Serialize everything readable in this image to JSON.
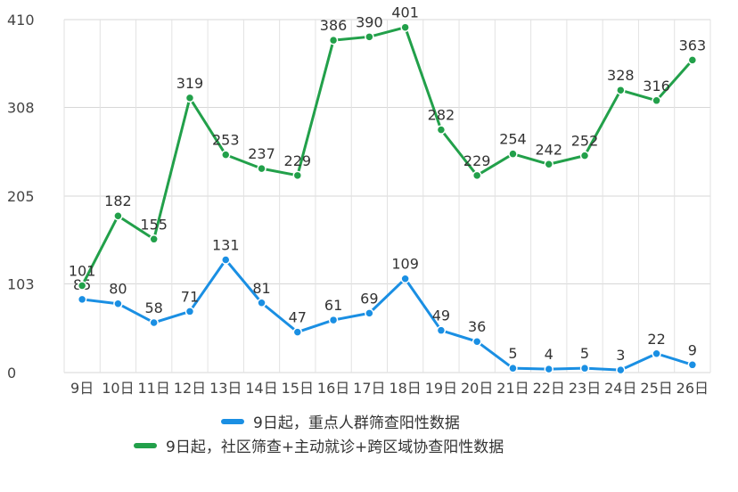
{
  "chart_data": {
    "type": "line",
    "categories": [
      "9日",
      "10日",
      "11日",
      "12日",
      "13日",
      "14日",
      "15日",
      "16日",
      "17日",
      "18日",
      "19日",
      "20日",
      "21日",
      "22日",
      "23日",
      "24日",
      "25日",
      "26日"
    ],
    "ylim": [
      0,
      410
    ],
    "yticks": [
      0,
      103,
      205,
      308,
      410
    ],
    "grid": true,
    "legend_position": "bottom",
    "series": [
      {
        "name": "9日起，重点人群筛查阳性数据",
        "color": "#1a8fe3",
        "values": [
          85,
          80,
          58,
          71,
          131,
          81,
          47,
          61,
          69,
          109,
          49,
          36,
          5,
          4,
          5,
          3,
          22,
          9
        ]
      },
      {
        "name": "9日起，社区筛查+主动就诊+跨区域协查阳性数据",
        "color": "#22a04a",
        "values": [
          101,
          182,
          155,
          319,
          253,
          237,
          229,
          386,
          390,
          401,
          282,
          229,
          254,
          242,
          252,
          328,
          316,
          363
        ]
      }
    ]
  }
}
